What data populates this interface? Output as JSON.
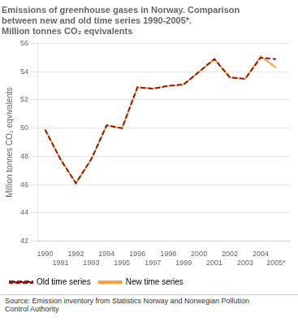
{
  "chart_data": {
    "type": "line",
    "title": "Emissions of greenhouse gases in Norway. Comparison\nbetween new and old time series 1990-2005*.\nMillion tonnes CO₂ eqvivalents",
    "ylabel": "Million tonnes CO₂ eqvivalents",
    "source": "Source: Emission inventory from Statistics Norway and Norwegian Pollution\nControl Authority",
    "x": [
      1990,
      1991,
      1992,
      1993,
      1994,
      1995,
      1996,
      1997,
      1998,
      1999,
      2000,
      2001,
      2002,
      2003,
      2004,
      2005
    ],
    "series": [
      {
        "name": "Old time series",
        "color": "#8B1A1A",
        "line_style": "dashed",
        "values": [
          49.9,
          47.8,
          46.1,
          47.8,
          50.2,
          50.0,
          52.9,
          52.8,
          53.0,
          53.1,
          54.0,
          54.9,
          53.6,
          53.5,
          55.0,
          54.9
        ]
      },
      {
        "name": "New time series",
        "color": "#FFA040",
        "line_style": "solid",
        "values": [
          49.9,
          47.8,
          46.1,
          47.8,
          50.2,
          50.0,
          52.9,
          52.8,
          53.0,
          53.1,
          54.0,
          54.9,
          53.6,
          53.5,
          55.1,
          54.3
        ]
      }
    ],
    "xlim": [
      1989.5,
      2005.9
    ],
    "xticks": [
      1990,
      1991,
      1992,
      1993,
      1994,
      1995,
      1996,
      1997,
      1998,
      1999,
      2000,
      2001,
      2002,
      2003,
      2004,
      {
        "value": 2005,
        "label": "2005*"
      }
    ],
    "ylim": [
      42,
      56
    ],
    "yticks": [
      42,
      44,
      46,
      48,
      50,
      52,
      54,
      56
    ],
    "grid": "y",
    "legend": "bottom"
  }
}
